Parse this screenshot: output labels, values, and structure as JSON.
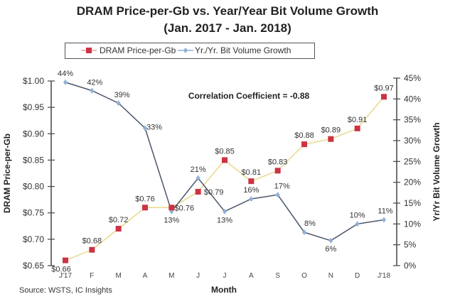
{
  "chart_data": {
    "type": "line",
    "title": "DRAM Price-per-Gb vs. Year/Year Bit Volume Growth",
    "subtitle": "(Jan. 2017 - Jan. 2018)",
    "xlabel": "Month",
    "ylabel": "DRAM Price-per-Gb",
    "y2label": "Yr/Yr Bit Volume Growth",
    "categories": [
      "J'17",
      "F",
      "M",
      "A",
      "M",
      "J",
      "J",
      "A",
      "S",
      "O",
      "N",
      "D",
      "J'18"
    ],
    "series": [
      {
        "name": "DRAM Price-per-Gb",
        "axis": "left",
        "color": "#cc3344",
        "line_color": "#e8d98a",
        "marker": "square",
        "values": [
          0.66,
          0.68,
          0.72,
          0.76,
          0.76,
          0.79,
          0.85,
          0.81,
          0.83,
          0.88,
          0.89,
          0.91,
          0.97
        ],
        "labels": [
          "$0.66",
          "$0.68",
          "$0.72",
          "$0.76",
          "$0.76",
          "$0.79",
          "$0.85",
          "$0.81",
          "$0.83",
          "$0.88",
          "$0.89",
          "$0.91",
          "$0.97"
        ]
      },
      {
        "name": "Yr./Yr. Bit Volume Growth",
        "axis": "right",
        "color": "#8fb0d8",
        "line_color": "#4a5668",
        "marker": "diamond",
        "values": [
          44,
          42,
          39,
          33,
          13,
          21,
          13,
          16,
          17,
          8,
          6,
          10,
          11
        ],
        "labels": [
          "44%",
          "42%",
          "39%",
          "33%",
          "13%",
          "21%",
          "13%",
          "16%",
          "17%",
          "8%",
          "6%",
          "10%",
          "11%"
        ]
      }
    ],
    "ylim": [
      0.65,
      1.0
    ],
    "y_ticks": [
      "$0.65",
      "$0.70",
      "$0.75",
      "$0.80",
      "$0.85",
      "$0.90",
      "$0.95",
      "$1.00"
    ],
    "y2lim": [
      0,
      45
    ],
    "y2_ticks": [
      "0%",
      "5%",
      "10%",
      "15%",
      "20%",
      "25%",
      "30%",
      "35%",
      "40%",
      "45%"
    ],
    "annotation": "Correlation Coefficient = -0.88",
    "legend_position": "top",
    "grid": false
  },
  "legend": {
    "price": "DRAM Price-per-Gb",
    "growth": "Yr./Yr. Bit Volume Growth"
  },
  "source": "Source: WSTS, IC Insights"
}
